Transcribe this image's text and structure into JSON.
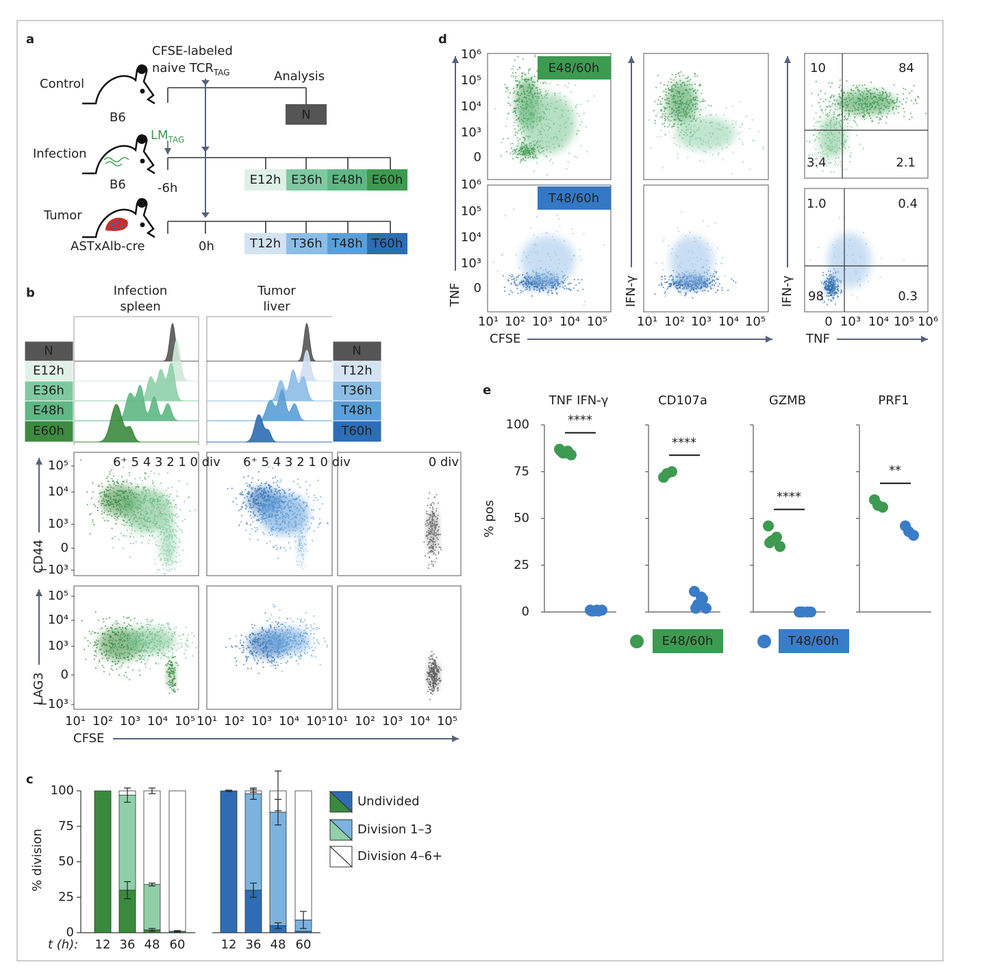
{
  "panel_labels": [
    "a",
    "b",
    "c",
    "d",
    "e"
  ],
  "panel_a": {
    "cfse_label": [
      "CFSE-labeled",
      "naive TCR"
    ],
    "tcr_subscript": "TAG",
    "analysis": "Analysis",
    "groups": [
      {
        "name": "Control",
        "strain": "B6"
      },
      {
        "name": "Infection",
        "strain": "B6"
      },
      {
        "name": "Tumor",
        "strain": "ASTxAlb-cre"
      }
    ],
    "lm_label": "LM",
    "lm_subscript": "TAG",
    "infection_time": "-6h",
    "tumor_time": "0h",
    "control_box": "N",
    "infection_boxes": [
      "E12h",
      "E36h",
      "E48h",
      "E60h"
    ],
    "tumor_boxes": [
      "T12h",
      "T36h",
      "T48h",
      "T60h"
    ]
  },
  "panel_b": {
    "infection_title": [
      "Infection",
      "spleen"
    ],
    "tumor_title": [
      "Tumor",
      "liver"
    ],
    "infection_rows": [
      "N",
      "E12h",
      "E36h",
      "E48h",
      "E60h"
    ],
    "tumor_rows": [
      "N",
      "T12h",
      "T36h",
      "T48h",
      "T60h"
    ],
    "division_label": "6⁺ 5 4 3 2 1 0 div",
    "naive_division_label": "0 div",
    "y_labels": [
      "CD44",
      "LAG3"
    ],
    "y_ticks": [
      "10⁵",
      "10⁴",
      "10³",
      "0",
      "−10³"
    ],
    "x_label": "CFSE",
    "x_ticks": [
      "10¹",
      "10²",
      "10³",
      "10⁴",
      "10⁵"
    ]
  },
  "panel_d": {
    "gates": [
      "E48/60h",
      "T48/60h"
    ],
    "y_labels": [
      "TNF",
      "IFN-γ",
      "IFN-γ"
    ],
    "y_ticks": [
      "10⁶",
      "10⁵",
      "10⁴",
      "10³",
      "0"
    ],
    "x_labels": [
      "CFSE",
      "TNF"
    ],
    "cfse_ticks": [
      "10¹",
      "10²",
      "10³",
      "10⁴",
      "10⁵"
    ],
    "tnf_ticks": [
      "0",
      "10³",
      "10⁴",
      "10⁵",
      "10⁶"
    ],
    "quadrants": [
      [
        "10",
        "84",
        "3.4",
        "2.1"
      ],
      [
        "1.0",
        "0.4",
        "98",
        "0.3"
      ]
    ]
  },
  "chart_data": [
    {
      "type": "stacked_bar",
      "y_label": "% division",
      "x_label": "t (h):",
      "categories": [
        "12",
        "36",
        "48",
        "60"
      ],
      "ylim": [
        0,
        100
      ],
      "yticks": [
        0,
        25,
        50,
        75,
        100
      ],
      "series": [
        {
          "name": "Undivided",
          "color": "#3a8a3e",
          "values": [
            100,
            30,
            2,
            1
          ],
          "errors": [
            0,
            6,
            1,
            0.5
          ]
        },
        {
          "name": "Division 1–3",
          "color": "#8fd0a8",
          "values": [
            0,
            67,
            32,
            0
          ],
          "errors": [
            0,
            5,
            1,
            0
          ]
        },
        {
          "name": "Division 4–6+",
          "color": "#ffffff",
          "values": [
            0,
            3,
            66,
            99
          ],
          "errors": [
            0,
            0,
            2,
            0
          ]
        }
      ]
    },
    {
      "type": "stacked_bar",
      "categories": [
        "12",
        "36",
        "48",
        "60"
      ],
      "ylim": [
        0,
        100
      ],
      "series": [
        {
          "color": "#2e6db4",
          "values": [
            100,
            30,
            5,
            1
          ],
          "errors": [
            0.5,
            5,
            2,
            0
          ]
        },
        {
          "color": "#7ab3df",
          "values": [
            0,
            68,
            80,
            8
          ],
          "errors": [
            0,
            4,
            9,
            6
          ]
        },
        {
          "color": "#ffffff",
          "values": [
            0,
            2,
            15,
            91
          ],
          "errors": [
            0,
            1,
            14,
            0
          ]
        }
      ]
    },
    {
      "type": "strip",
      "title": "TNF IFN-γ",
      "significance": "****",
      "y_label": "% pos",
      "ylim": [
        0,
        100
      ],
      "yticks": [
        0,
        25,
        50,
        75,
        100
      ],
      "series": [
        {
          "name": "E48/60h",
          "color": "#3d9a50",
          "values": [
            87,
            86,
            85,
            84,
            86,
            85
          ]
        },
        {
          "name": "T48/60h",
          "color": "#3a7cc8",
          "values": [
            1,
            0.5,
            0.5,
            1,
            0.5,
            1
          ]
        }
      ]
    },
    {
      "type": "strip",
      "title": "CD107a",
      "significance": "****",
      "ylim": [
        0,
        100
      ],
      "yticks": [
        0,
        25,
        50,
        75,
        100
      ],
      "series": [
        {
          "color": "#3d9a50",
          "values": [
            72,
            75,
            74
          ]
        },
        {
          "color": "#3a7cc8",
          "values": [
            11,
            7,
            4,
            2,
            2,
            8
          ]
        }
      ]
    },
    {
      "type": "strip",
      "title": "GZMB",
      "significance": "****",
      "ylim": [
        0,
        100
      ],
      "yticks": [
        0,
        25,
        50,
        75,
        100
      ],
      "series": [
        {
          "color": "#3d9a50",
          "values": [
            46,
            40,
            38,
            35,
            37,
            39
          ]
        },
        {
          "color": "#3a7cc8",
          "values": [
            0,
            0,
            0,
            0,
            0
          ]
        }
      ]
    },
    {
      "type": "strip",
      "title": "PRF1",
      "significance": "**",
      "ylim": [
        0,
        100
      ],
      "yticks": [
        0,
        25,
        50,
        75,
        100
      ],
      "series": [
        {
          "color": "#3d9a50",
          "values": [
            60,
            56,
            57
          ]
        },
        {
          "color": "#3a7cc8",
          "values": [
            46,
            41,
            43
          ]
        }
      ]
    }
  ]
}
